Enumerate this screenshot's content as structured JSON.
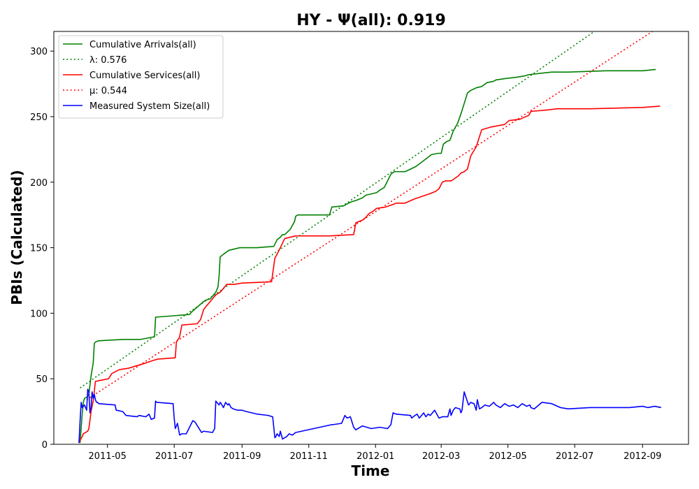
{
  "chart_data": {
    "type": "line",
    "title": "HY -  Ψ(all): 0.919",
    "xlabel": "Time",
    "ylabel": "PBIs (Calculated)",
    "x_axis_type": "date",
    "xlim": [
      "2011-03-13",
      "2012-10-13"
    ],
    "ylim": [
      0,
      315
    ],
    "x_ticks": [
      "2011-05-01",
      "2011-07-01",
      "2011-09-01",
      "2011-11-01",
      "2012-01-01",
      "2012-03-01",
      "2012-05-01",
      "2012-07-01",
      "2012-09-01"
    ],
    "x_tick_labels": [
      "2011-05",
      "2011-07",
      "2011-09",
      "2011-11",
      "2012-01",
      "2012-03",
      "2012-05",
      "2012-07",
      "2012-09"
    ],
    "y_ticks": [
      0,
      50,
      100,
      150,
      200,
      250,
      300
    ],
    "y_tick_labels": [
      "0",
      "50",
      "100",
      "150",
      "200",
      "250",
      "300"
    ],
    "grid": false,
    "legend_position": "top-left",
    "series": [
      {
        "name": "Cumulative Arrivals(all)",
        "color": "#008000",
        "style": "solid",
        "x": [
          "2011-04-06",
          "2011-04-08",
          "2011-04-09",
          "2011-04-10",
          "2011-04-12",
          "2011-04-14",
          "2011-04-15",
          "2011-04-16",
          "2011-04-18",
          "2011-04-19",
          "2011-04-20",
          "2011-04-23",
          "2011-05-15",
          "2011-05-31",
          "2011-06-13",
          "2011-06-14",
          "2011-07-15",
          "2011-07-17",
          "2011-07-28",
          "2011-07-30",
          "2011-08-03",
          "2011-08-05",
          "2011-08-08",
          "2011-08-10",
          "2011-08-11",
          "2011-08-12",
          "2011-08-15",
          "2011-08-20",
          "2011-08-25",
          "2011-08-30",
          "2011-09-15",
          "2011-09-30",
          "2011-10-03",
          "2011-10-06",
          "2011-10-08",
          "2011-10-10",
          "2011-10-15",
          "2011-10-19",
          "2011-10-20",
          "2011-10-22",
          "2011-11-10",
          "2011-11-20",
          "2011-11-22",
          "2011-12-03",
          "2011-12-05",
          "2011-12-10",
          "2011-12-14",
          "2011-12-17",
          "2011-12-20",
          "2011-12-23",
          "2011-12-28",
          "2012-01-02",
          "2012-01-05",
          "2012-01-09",
          "2012-01-15",
          "2012-01-18",
          "2012-01-23",
          "2012-01-28",
          "2012-02-07",
          "2012-02-18",
          "2012-02-21",
          "2012-02-27",
          "2012-03-01",
          "2012-03-03",
          "2012-03-06",
          "2012-03-09",
          "2012-03-12",
          "2012-03-16",
          "2012-03-19",
          "2012-03-22",
          "2012-03-25",
          "2012-03-28",
          "2012-04-02",
          "2012-04-07",
          "2012-04-12",
          "2012-04-18",
          "2012-04-20",
          "2012-04-28",
          "2012-05-08",
          "2012-05-16",
          "2012-05-20",
          "2012-05-30",
          "2012-06-10",
          "2012-06-25",
          "2012-07-30",
          "2012-09-01",
          "2012-09-13"
        ],
        "y": [
          1,
          24,
          32,
          35,
          36,
          38,
          45,
          52,
          62,
          77,
          78,
          79,
          80,
          80,
          82,
          97,
          99,
          101,
          109,
          110,
          111,
          113,
          116,
          120,
          128,
          143,
          145,
          148,
          149,
          150,
          150,
          151,
          156,
          158,
          160,
          160,
          164,
          170,
          174,
          175,
          175,
          175,
          181,
          182,
          183,
          185,
          186,
          187,
          188,
          190,
          191,
          192,
          194,
          196,
          206,
          208,
          208,
          208,
          212,
          219,
          221,
          222,
          222,
          229,
          231,
          232,
          239,
          245,
          252,
          260,
          268,
          270,
          272,
          273,
          276,
          277,
          278,
          279,
          280,
          281,
          282,
          283,
          284,
          284,
          285,
          285,
          286
        ]
      },
      {
        "name": "λ: 0.576",
        "color": "#008000",
        "style": "dotted",
        "x": [
          "2011-04-06",
          "2012-07-19"
        ],
        "y": [
          43,
          315
        ]
      },
      {
        "name": "Cumulative Services(all)",
        "color": "#ff0000",
        "style": "solid",
        "x": [
          "2011-04-05",
          "2011-04-06",
          "2011-04-08",
          "2011-04-09",
          "2011-04-13",
          "2011-04-14",
          "2011-04-15",
          "2011-04-16",
          "2011-04-18",
          "2011-04-20",
          "2011-05-02",
          "2011-05-05",
          "2011-05-12",
          "2011-05-20",
          "2011-06-05",
          "2011-06-12",
          "2011-06-16",
          "2011-07-02",
          "2011-07-03",
          "2011-07-06",
          "2011-07-08",
          "2011-07-22",
          "2011-07-25",
          "2011-07-28",
          "2011-08-01",
          "2011-08-05",
          "2011-08-08",
          "2011-08-12",
          "2011-08-14",
          "2011-08-18",
          "2011-08-25",
          "2011-09-01",
          "2011-09-28",
          "2011-10-01",
          "2011-10-03",
          "2011-10-06",
          "2011-10-10",
          "2011-10-15",
          "2011-10-20",
          "2011-11-20",
          "2011-12-12",
          "2011-12-14",
          "2011-12-20",
          "2011-12-23",
          "2011-12-26",
          "2011-12-30",
          "2012-01-02",
          "2012-01-10",
          "2012-01-17",
          "2012-01-20",
          "2012-01-28",
          "2012-02-05",
          "2012-02-12",
          "2012-02-19",
          "2012-02-25",
          "2012-02-28",
          "2012-03-02",
          "2012-03-05",
          "2012-03-10",
          "2012-03-12",
          "2012-03-17",
          "2012-03-19",
          "2012-03-22",
          "2012-03-25",
          "2012-03-28",
          "2012-04-02",
          "2012-04-07",
          "2012-04-15",
          "2012-04-28",
          "2012-05-02",
          "2012-05-12",
          "2012-05-20",
          "2012-05-22",
          "2012-06-05",
          "2012-06-15",
          "2012-07-15",
          "2012-09-01",
          "2012-09-17"
        ],
        "y": [
          1,
          3,
          6,
          8,
          10,
          12,
          18,
          25,
          33,
          48,
          50,
          54,
          57,
          58,
          62,
          64,
          65,
          66,
          78,
          82,
          91,
          92,
          95,
          103,
          107,
          111,
          114,
          116,
          118,
          122,
          122,
          123,
          124,
          142,
          145,
          150,
          157,
          158,
          159,
          159,
          160,
          169,
          171,
          173,
          176,
          178,
          180,
          181,
          183,
          184,
          184,
          187,
          189,
          191,
          193,
          195,
          200,
          201,
          201,
          202,
          205,
          207,
          208,
          210,
          220,
          227,
          240,
          242,
          244,
          247,
          248,
          251,
          254,
          255,
          256,
          256,
          257,
          258
        ]
      },
      {
        "name": "μ: 0.544",
        "color": "#ff0000",
        "style": "dotted",
        "x": [
          "2011-04-12",
          "2012-09-10"
        ],
        "y": [
          34,
          315
        ]
      },
      {
        "name": "Measured System Size(all)",
        "color": "#0000ff",
        "style": "solid",
        "x": [
          "2011-04-05",
          "2011-04-06",
          "2011-04-07",
          "2011-04-08",
          "2011-04-10",
          "2011-04-12",
          "2011-04-13",
          "2011-04-14",
          "2011-04-15",
          "2011-04-16",
          "2011-04-17",
          "2011-04-18",
          "2011-04-19",
          "2011-04-20",
          "2011-04-21",
          "2011-04-22",
          "2011-04-23",
          "2011-05-08",
          "2011-05-09",
          "2011-05-15",
          "2011-05-18",
          "2011-05-28",
          "2011-05-30",
          "2011-06-05",
          "2011-06-08",
          "2011-06-10",
          "2011-06-13",
          "2011-06-14",
          "2011-06-15",
          "2011-06-30",
          "2011-07-01",
          "2011-07-02",
          "2011-07-04",
          "2011-07-06",
          "2011-07-08",
          "2011-07-12",
          "2011-07-18",
          "2011-07-20",
          "2011-07-26",
          "2011-07-28",
          "2011-08-05",
          "2011-08-07",
          "2011-08-08",
          "2011-08-11",
          "2011-08-12",
          "2011-08-13",
          "2011-08-15",
          "2011-08-17",
          "2011-08-19",
          "2011-08-20",
          "2011-08-22",
          "2011-08-24",
          "2011-08-28",
          "2011-09-01",
          "2011-09-05",
          "2011-09-10",
          "2011-09-15",
          "2011-09-25",
          "2011-09-29",
          "2011-10-01",
          "2011-10-02",
          "2011-10-03",
          "2011-10-05",
          "2011-10-06",
          "2011-10-08",
          "2011-10-12",
          "2011-10-14",
          "2011-10-17",
          "2011-10-20",
          "2011-11-22",
          "2011-11-23",
          "2011-12-01",
          "2011-12-04",
          "2011-12-06",
          "2011-12-09",
          "2011-12-12",
          "2011-12-14",
          "2011-12-18",
          "2011-12-20",
          "2011-12-28",
          "2012-01-05",
          "2012-01-12",
          "2012-01-15",
          "2012-01-17",
          "2012-01-20",
          "2012-02-02",
          "2012-02-03",
          "2012-02-06",
          "2012-02-08",
          "2012-02-10",
          "2012-02-14",
          "2012-02-16",
          "2012-02-18",
          "2012-02-20",
          "2012-02-22",
          "2012-02-24",
          "2012-02-28",
          "2012-03-02",
          "2012-03-07",
          "2012-03-09",
          "2012-03-10",
          "2012-03-12",
          "2012-03-14",
          "2012-03-18",
          "2012-03-19",
          "2012-03-20",
          "2012-03-22",
          "2012-03-24",
          "2012-03-26",
          "2012-03-28",
          "2012-03-31",
          "2012-04-02",
          "2012-04-03",
          "2012-04-05",
          "2012-04-07",
          "2012-04-10",
          "2012-04-14",
          "2012-04-18",
          "2012-04-20",
          "2012-04-24",
          "2012-04-28",
          "2012-05-02",
          "2012-05-06",
          "2012-05-10",
          "2012-05-14",
          "2012-05-18",
          "2012-05-21",
          "2012-05-22",
          "2012-05-25",
          "2012-06-01",
          "2012-06-10",
          "2012-06-18",
          "2012-06-25",
          "2012-07-15",
          "2012-08-20",
          "2012-09-01",
          "2012-09-06",
          "2012-09-12",
          "2012-09-18"
        ],
        "y": [
          1,
          18,
          32,
          28,
          30,
          26,
          42,
          40,
          24,
          28,
          40,
          35,
          38,
          34,
          32,
          32,
          31,
          30,
          26,
          25,
          22,
          21,
          22,
          21,
          23,
          19,
          20,
          33,
          32,
          31,
          20,
          12,
          16,
          7,
          8,
          8,
          18,
          17,
          9,
          10,
          9,
          12,
          33,
          30,
          32,
          31,
          28,
          32,
          30,
          31,
          28,
          27,
          26,
          26,
          25,
          24,
          23,
          22,
          21,
          5,
          6,
          8,
          6,
          10,
          4,
          6,
          8,
          7,
          9,
          15,
          15,
          16,
          22,
          20,
          21,
          13,
          11,
          13,
          14,
          12,
          13,
          12,
          15,
          24,
          23,
          22,
          20,
          22,
          23,
          20,
          24,
          21,
          23,
          22,
          24,
          26,
          20,
          21,
          21,
          27,
          22,
          26,
          28,
          27,
          24,
          26,
          40,
          35,
          30,
          32,
          31,
          26,
          34,
          27,
          28,
          30,
          29,
          32,
          30,
          28,
          31,
          29,
          30,
          28,
          31,
          29,
          30,
          28,
          27,
          32,
          31,
          28,
          27,
          28,
          28,
          29,
          28,
          29,
          28
        ]
      }
    ]
  }
}
